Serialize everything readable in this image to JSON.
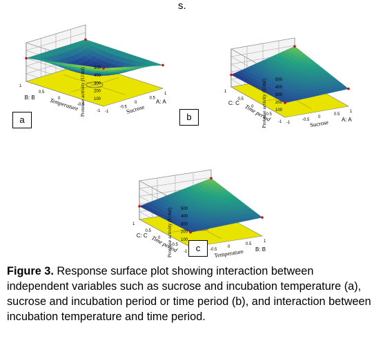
{
  "stray_text": "s.",
  "caption": {
    "label": "Figure 3.",
    "text": "Response surface plot showing interaction between independent variables such as sucrose and incubation temperature (a), sucrose and incubation period or time period (b), and interaction between incubation temperature and time period."
  },
  "chart_data": [
    {
      "type": "surface",
      "panel_label": "a",
      "zlabel": "Protease activity (U/ml)",
      "zticks": [
        "100",
        "200",
        "300",
        "400",
        "500"
      ],
      "zlim": [
        0,
        500
      ],
      "x_axis": {
        "code": "A: A",
        "name": "Sucrose",
        "ticks": [
          "-1",
          "-0.5",
          "0",
          "0.5",
          "1"
        ]
      },
      "y_axis": {
        "code": "B: B",
        "name": "Temperature",
        "ticks": [
          "-1",
          "-0.5",
          "0",
          "0.5",
          "1"
        ]
      },
      "floor_color": "#e8e400",
      "corner_values": [
        490,
        300,
        310,
        300
      ],
      "center_value": 140,
      "colorscale": [
        "#1f1b7f",
        "#25649a",
        "#22a283",
        "#8fd33a"
      ]
    },
    {
      "type": "surface",
      "panel_label": "b",
      "zlabel": "Protease activity (U/ml)",
      "zticks": [
        "100",
        "200",
        "300",
        "400",
        "500"
      ],
      "zlim": [
        0,
        500
      ],
      "x_axis": {
        "code": "A: A",
        "name": "Sucrose",
        "ticks": [
          "-1",
          "-0.5",
          "0",
          "0.5",
          "1"
        ]
      },
      "y_axis": {
        "code": "C: C",
        "name": "Time period",
        "ticks": [
          "-1",
          "-0.5",
          "0",
          "0.5",
          "1"
        ]
      },
      "floor_color": "#e8e400",
      "corner_values": [
        190,
        230,
        390,
        160
      ],
      "center_value": 270,
      "colorscale": [
        "#1f1b7f",
        "#25649a",
        "#22a283",
        "#8fd33a"
      ]
    },
    {
      "type": "surface",
      "panel_label": "c",
      "zlabel": "Protease activity (U/ml)",
      "zticks": [
        "100",
        "200",
        "300",
        "400",
        "500"
      ],
      "zlim": [
        0,
        500
      ],
      "x_axis": {
        "code": "B: B",
        "name": "Temperature",
        "ticks": [
          "-1",
          "-0.5",
          "0",
          "0.5",
          "1"
        ]
      },
      "y_axis": {
        "code": "C: C",
        "name": "Time period",
        "ticks": [
          "-1",
          "-0.5",
          "0",
          "0.5",
          "1"
        ]
      },
      "floor_color": "#e8e400",
      "corner_values": [
        190,
        240,
        390,
        170
      ],
      "center_value": 280,
      "colorscale": [
        "#1f1b7f",
        "#25649a",
        "#22a283",
        "#8fd33a"
      ]
    }
  ]
}
